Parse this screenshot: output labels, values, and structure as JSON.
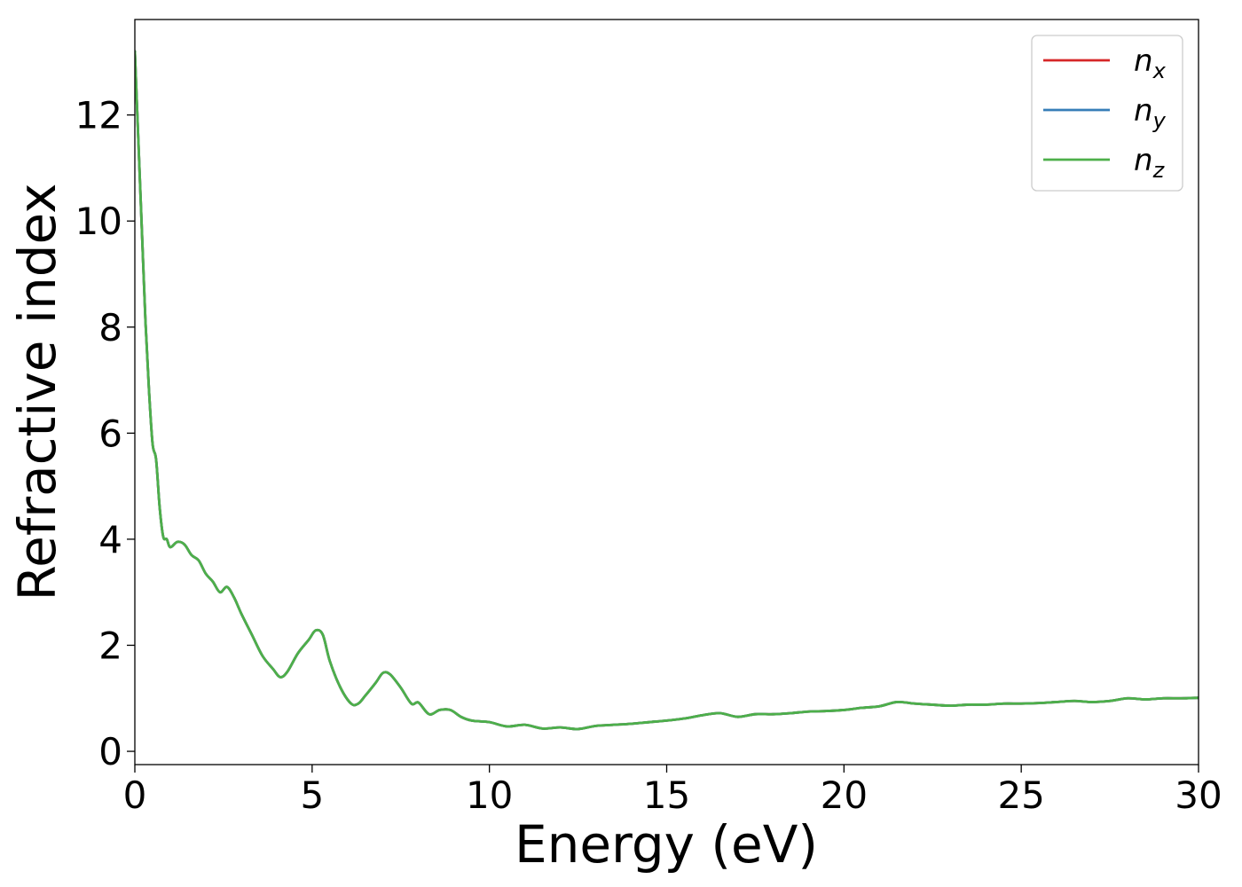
{
  "chart_data": {
    "type": "line",
    "title": "",
    "xlabel": "Energy (eV)",
    "ylabel": "Refractive index",
    "xlim": [
      0,
      30
    ],
    "ylim": [
      -0.25,
      13.8
    ],
    "xticks": [
      0,
      5,
      10,
      15,
      20,
      25,
      30
    ],
    "yticks": [
      0,
      2,
      4,
      6,
      8,
      10,
      12
    ],
    "grid": false,
    "legend_position": "top-right",
    "series": [
      {
        "name": "n_x",
        "legend": {
          "base": "n",
          "sub": "x"
        },
        "color": "#d62728",
        "x": [
          0.0,
          0.1,
          0.2,
          0.3,
          0.4,
          0.5,
          0.6,
          0.7,
          0.8,
          0.9,
          1.0,
          1.2,
          1.4,
          1.6,
          1.8,
          2.0,
          2.2,
          2.4,
          2.6,
          2.8,
          3.0,
          3.3,
          3.6,
          3.9,
          4.1,
          4.3,
          4.6,
          4.9,
          5.1,
          5.3,
          5.5,
          5.8,
          6.1,
          6.3,
          6.5,
          6.8,
          7.0,
          7.2,
          7.5,
          7.8,
          8.0,
          8.3,
          8.6,
          8.9,
          9.2,
          9.5,
          10.0,
          10.5,
          11.0,
          11.5,
          12.0,
          12.5,
          13.0,
          13.5,
          14.0,
          14.5,
          15.0,
          15.5,
          16.0,
          16.5,
          17.0,
          17.5,
          18.0,
          18.5,
          19.0,
          19.5,
          20.0,
          20.5,
          21.0,
          21.5,
          22.0,
          22.5,
          23.0,
          23.5,
          24.0,
          24.5,
          25.0,
          25.5,
          26.0,
          26.5,
          27.0,
          27.5,
          28.0,
          28.5,
          29.0,
          29.5,
          30.0
        ],
        "y": [
          13.2,
          11.5,
          9.8,
          8.1,
          6.8,
          5.8,
          5.5,
          4.6,
          4.05,
          4.0,
          3.85,
          3.95,
          3.9,
          3.7,
          3.6,
          3.35,
          3.2,
          3.0,
          3.1,
          2.9,
          2.6,
          2.2,
          1.8,
          1.55,
          1.4,
          1.5,
          1.85,
          2.1,
          2.28,
          2.2,
          1.7,
          1.2,
          0.9,
          0.9,
          1.05,
          1.3,
          1.48,
          1.45,
          1.2,
          0.9,
          0.92,
          0.7,
          0.78,
          0.78,
          0.65,
          0.58,
          0.55,
          0.47,
          0.5,
          0.43,
          0.45,
          0.42,
          0.48,
          0.5,
          0.52,
          0.55,
          0.58,
          0.62,
          0.68,
          0.72,
          0.65,
          0.7,
          0.7,
          0.72,
          0.75,
          0.76,
          0.78,
          0.82,
          0.85,
          0.93,
          0.9,
          0.88,
          0.86,
          0.88,
          0.88,
          0.9,
          0.9,
          0.91,
          0.93,
          0.95,
          0.93,
          0.95,
          1.0,
          0.98,
          1.0,
          1.0,
          1.01
        ]
      },
      {
        "name": "n_y",
        "legend": {
          "base": "n",
          "sub": "y"
        },
        "color": "#377eb8",
        "x": [
          0.0,
          0.1,
          0.2,
          0.3,
          0.4,
          0.5,
          0.6,
          0.7,
          0.8,
          0.9,
          1.0,
          1.2,
          1.4,
          1.6,
          1.8,
          2.0,
          2.2,
          2.4,
          2.6,
          2.8,
          3.0,
          3.3,
          3.6,
          3.9,
          4.1,
          4.3,
          4.6,
          4.9,
          5.1,
          5.3,
          5.5,
          5.8,
          6.1,
          6.3,
          6.5,
          6.8,
          7.0,
          7.2,
          7.5,
          7.8,
          8.0,
          8.3,
          8.6,
          8.9,
          9.2,
          9.5,
          10.0,
          10.5,
          11.0,
          11.5,
          12.0,
          12.5,
          13.0,
          13.5,
          14.0,
          14.5,
          15.0,
          15.5,
          16.0,
          16.5,
          17.0,
          17.5,
          18.0,
          18.5,
          19.0,
          19.5,
          20.0,
          20.5,
          21.0,
          21.5,
          22.0,
          22.5,
          23.0,
          23.5,
          24.0,
          24.5,
          25.0,
          25.5,
          26.0,
          26.5,
          27.0,
          27.5,
          28.0,
          28.5,
          29.0,
          29.5,
          30.0
        ],
        "y": [
          13.2,
          11.5,
          9.8,
          8.1,
          6.8,
          5.8,
          5.5,
          4.6,
          4.05,
          4.0,
          3.85,
          3.95,
          3.9,
          3.7,
          3.6,
          3.35,
          3.2,
          3.0,
          3.1,
          2.9,
          2.6,
          2.2,
          1.8,
          1.55,
          1.4,
          1.5,
          1.85,
          2.1,
          2.28,
          2.2,
          1.7,
          1.2,
          0.9,
          0.9,
          1.05,
          1.3,
          1.48,
          1.45,
          1.2,
          0.9,
          0.92,
          0.7,
          0.78,
          0.78,
          0.65,
          0.58,
          0.55,
          0.47,
          0.5,
          0.43,
          0.45,
          0.42,
          0.48,
          0.5,
          0.52,
          0.55,
          0.58,
          0.62,
          0.68,
          0.72,
          0.65,
          0.7,
          0.7,
          0.72,
          0.75,
          0.76,
          0.78,
          0.82,
          0.85,
          0.93,
          0.9,
          0.88,
          0.86,
          0.88,
          0.88,
          0.9,
          0.9,
          0.91,
          0.93,
          0.95,
          0.93,
          0.95,
          1.0,
          0.98,
          1.0,
          1.0,
          1.01
        ]
      },
      {
        "name": "n_z",
        "legend": {
          "base": "n",
          "sub": "z"
        },
        "color": "#4daf4a",
        "x": [
          0.0,
          0.1,
          0.2,
          0.3,
          0.4,
          0.5,
          0.6,
          0.7,
          0.8,
          0.9,
          1.0,
          1.2,
          1.4,
          1.6,
          1.8,
          2.0,
          2.2,
          2.4,
          2.6,
          2.8,
          3.0,
          3.3,
          3.6,
          3.9,
          4.1,
          4.3,
          4.6,
          4.9,
          5.1,
          5.3,
          5.5,
          5.8,
          6.1,
          6.3,
          6.5,
          6.8,
          7.0,
          7.2,
          7.5,
          7.8,
          8.0,
          8.3,
          8.6,
          8.9,
          9.2,
          9.5,
          10.0,
          10.5,
          11.0,
          11.5,
          12.0,
          12.5,
          13.0,
          13.5,
          14.0,
          14.5,
          15.0,
          15.5,
          16.0,
          16.5,
          17.0,
          17.5,
          18.0,
          18.5,
          19.0,
          19.5,
          20.0,
          20.5,
          21.0,
          21.5,
          22.0,
          22.5,
          23.0,
          23.5,
          24.0,
          24.5,
          25.0,
          25.5,
          26.0,
          26.5,
          27.0,
          27.5,
          28.0,
          28.5,
          29.0,
          29.5,
          30.0
        ],
        "y": [
          13.2,
          11.5,
          9.8,
          8.1,
          6.8,
          5.8,
          5.5,
          4.6,
          4.05,
          4.0,
          3.85,
          3.95,
          3.9,
          3.7,
          3.6,
          3.35,
          3.2,
          3.0,
          3.1,
          2.9,
          2.6,
          2.2,
          1.8,
          1.55,
          1.4,
          1.5,
          1.85,
          2.1,
          2.28,
          2.2,
          1.7,
          1.2,
          0.9,
          0.9,
          1.05,
          1.3,
          1.48,
          1.45,
          1.2,
          0.9,
          0.92,
          0.7,
          0.78,
          0.78,
          0.65,
          0.58,
          0.55,
          0.47,
          0.5,
          0.43,
          0.45,
          0.42,
          0.48,
          0.5,
          0.52,
          0.55,
          0.58,
          0.62,
          0.68,
          0.72,
          0.65,
          0.7,
          0.7,
          0.72,
          0.75,
          0.76,
          0.78,
          0.82,
          0.85,
          0.93,
          0.9,
          0.88,
          0.86,
          0.88,
          0.88,
          0.9,
          0.9,
          0.91,
          0.93,
          0.95,
          0.93,
          0.95,
          1.0,
          0.98,
          1.0,
          1.0,
          1.01
        ]
      }
    ]
  }
}
